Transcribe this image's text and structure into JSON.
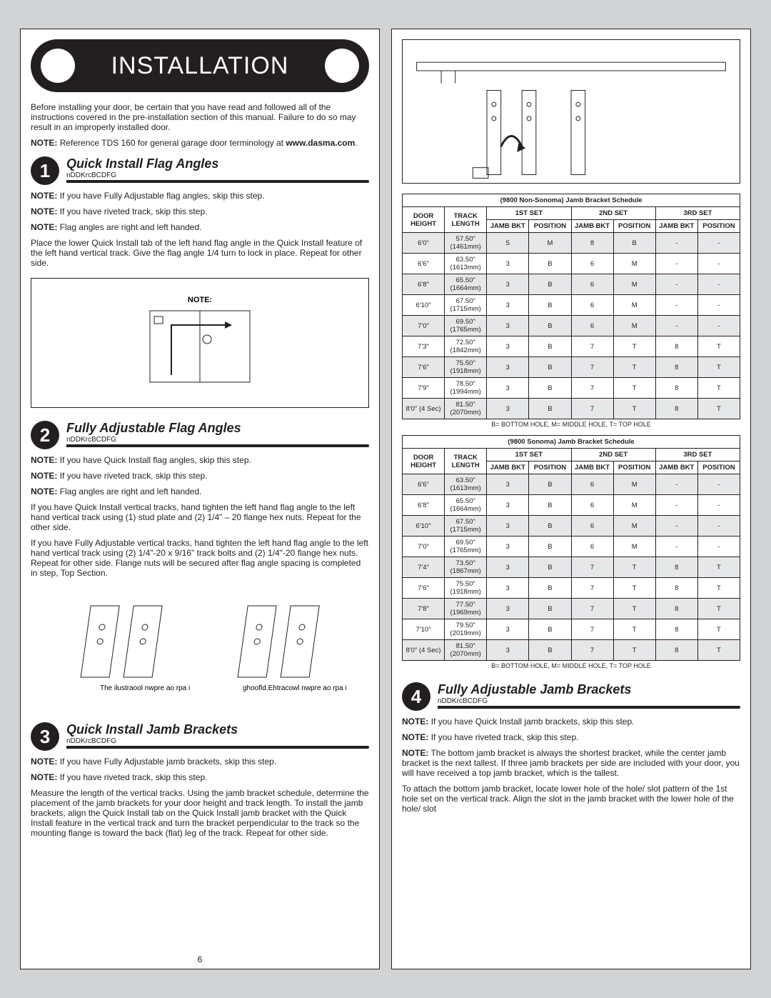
{
  "header": "INSTALLATION",
  "intro": "Before installing your door, be certain that you have read and followed all of the instructions covered in the pre-installation section of this manual. Failure to do so may result in an improperly installed door.",
  "topnote_prefix": "NOTE:",
  "topnote": "Reference TDS 160 for general garage door terminology at",
  "topnote_bold": "www.dasma.com",
  "step1": {
    "num": "1",
    "title": "Quick Install Flag Angles",
    "sub": "nDDKrcBCDFG",
    "n1": "If you have Fully Adjustable flag angles, skip this step.",
    "n2": "If you have riveted track, skip this step.",
    "n3": "Flag angles are right and left handed.",
    "body": "Place the lower Quick Install tab of the left hand flag angle in the Quick Install feature of the left hand vertical track. Give the flag angle 1/4 turn to lock in place. Repeat for other side."
  },
  "step2": {
    "num": "2",
    "title": "Fully Adjustable Flag Angles",
    "sub": "nDDKrcBCDFG",
    "n1": "If you have Quick Install flag angles, skip this step.",
    "n2": "If you have riveted track, skip this step.",
    "n3": "Flag angles are right and left handed.",
    "b1": "If you have Quick Install vertical tracks, hand tighten the left hand flag angle to the left hand vertical track using (1) stud plate and (2) 1/4\" – 20 flange hex nuts. Repeat for the other side.",
    "b2": "If you have Fully Adjustable vertical tracks, hand tighten the left hand flag angle to the left hand vertical track using (2) 1/4\"-20 x 9/16\" track bolts and (2) 1/4\"-20 flange hex nuts. Repeat for other side. Flange nuts will be secured after flag angle spacing is completed in step, Top Section."
  },
  "step3": {
    "num": "3",
    "title": "Quick Install Jamb Brackets",
    "sub": "nDDKrcBCDFG",
    "n1": "If you have Fully Adjustable jamb brackets, skip this step.",
    "n2": "If you have riveted track, skip this step.",
    "body": "Measure the length of the vertical tracks. Using the jamb bracket schedule, determine the placement of the jamb brackets for your door height and track length. To install the jamb brackets, align the Quick Install tab on the Quick Install jamb bracket with the Quick Install feature in the vertical track and turn the bracket perpendicular to the track so the mounting flange is toward the back (flat) leg of the track. Repeat for other side."
  },
  "step4": {
    "num": "4",
    "title": "Fully Adjustable Jamb Brackets",
    "sub": "nDDKrcBCDFG",
    "n1": "If you have Quick Install jamb brackets, skip this step.",
    "n2": "If you have riveted track, skip this step.",
    "n3": "The bottom jamb bracket is always the shortest bracket, while the center jamb bracket is the next tallest. If three jamb brackets per side are included with your door, you will have received a top jamb bracket, which is the tallest.",
    "body": "To attach the bottom jamb bracket, locate lower hole of the hole/ slot pattern of the 1st hole set on the vertical track. Align the slot in the jamb bracket with the lower hole of the hole/ slot"
  },
  "noteLabel": "NOTE:",
  "tableA": {
    "caption": "(9800 Non-Sonoma) Jamb Bracket Schedule",
    "cols": {
      "door": "DOOR HEIGHT",
      "track": "TRACK LENGTH",
      "s1": "1ST SET",
      "s2": "2ND SET",
      "s3": "3RD SET",
      "jb": "JAMB BKT",
      "pos": "POSITION"
    },
    "rows": [
      [
        "6'0\"",
        "57.50\" (1461mm)",
        "5",
        "M",
        "8",
        "B",
        "-",
        "-"
      ],
      [
        "6'6\"",
        "63.50\" (1613mm)",
        "3",
        "B",
        "6",
        "M",
        "-",
        "-"
      ],
      [
        "6'8\"",
        "65.50\" (1664mm)",
        "3",
        "B",
        "6",
        "M",
        "-",
        "-"
      ],
      [
        "6'10\"",
        "67.50\" (1715mm)",
        "3",
        "B",
        "6",
        "M",
        "-",
        "-"
      ],
      [
        "7'0\"",
        "69.50\" (1765mm)",
        "3",
        "B",
        "6",
        "M",
        "-",
        "-"
      ],
      [
        "7'3\"",
        "72.50\" (1842mm)",
        "3",
        "B",
        "7",
        "T",
        "8",
        "T"
      ],
      [
        "7'6\"",
        "75.50\" (1918mm)",
        "3",
        "B",
        "7",
        "T",
        "8",
        "T"
      ],
      [
        "7'9\"",
        "78.50\" (1994mm)",
        "3",
        "B",
        "7",
        "T",
        "8",
        "T"
      ],
      [
        "8'0\" (4 Sec)",
        "81.50\" (2070mm)",
        "3",
        "B",
        "7",
        "T",
        "8",
        "T"
      ]
    ],
    "footer": "B= BOTTOM HOLE, M= MIDDLE HOLE, T= TOP HOLE"
  },
  "tableB": {
    "caption": "(9800 Sonoma) Jamb Bracket Schedule",
    "rows": [
      [
        "6'6\"",
        "63.50\" (1613mm)",
        "3",
        "B",
        "6",
        "M",
        "-",
        "-"
      ],
      [
        "6'8\"",
        "65.50\" (1664mm)",
        "3",
        "B",
        "6",
        "M",
        "-",
        "-"
      ],
      [
        "6'10\"",
        "67.50\" (1715mm)",
        "3",
        "B",
        "6",
        "M",
        "-",
        "-"
      ],
      [
        "7'0\"",
        "69.50\" (1765mm)",
        "3",
        "B",
        "6",
        "M",
        "-",
        "-"
      ],
      [
        "7'4\"",
        "73.50\" (1867mm)",
        "3",
        "B",
        "7",
        "T",
        "8",
        "T"
      ],
      [
        "7'6\"",
        "75.50\" (1918mm)",
        "3",
        "B",
        "7",
        "T",
        "8",
        "T"
      ],
      [
        "7'8\"",
        "77.50\" (1969mm)",
        "3",
        "B",
        "7",
        "T",
        "8",
        "T"
      ],
      [
        "7'10\"",
        "79.50\" (2019mm)",
        "3",
        "B",
        "7",
        "T",
        "8",
        "T"
      ],
      [
        "8'0\" (4 Sec)",
        "81.50\" (2070mm)",
        "3",
        "B",
        "7",
        "T",
        "8",
        "T"
      ]
    ],
    "footer": "B= BOTTOM HOLE, M= MIDDLE HOLE, T= TOP HOLE"
  },
  "pagenum": "6",
  "fignote": "NOTE:",
  "figcap1": "The ilustraool nwpre ao rpa i",
  "figcap2": "ghoofld.Ehtracowl nwpre ao rpa i"
}
